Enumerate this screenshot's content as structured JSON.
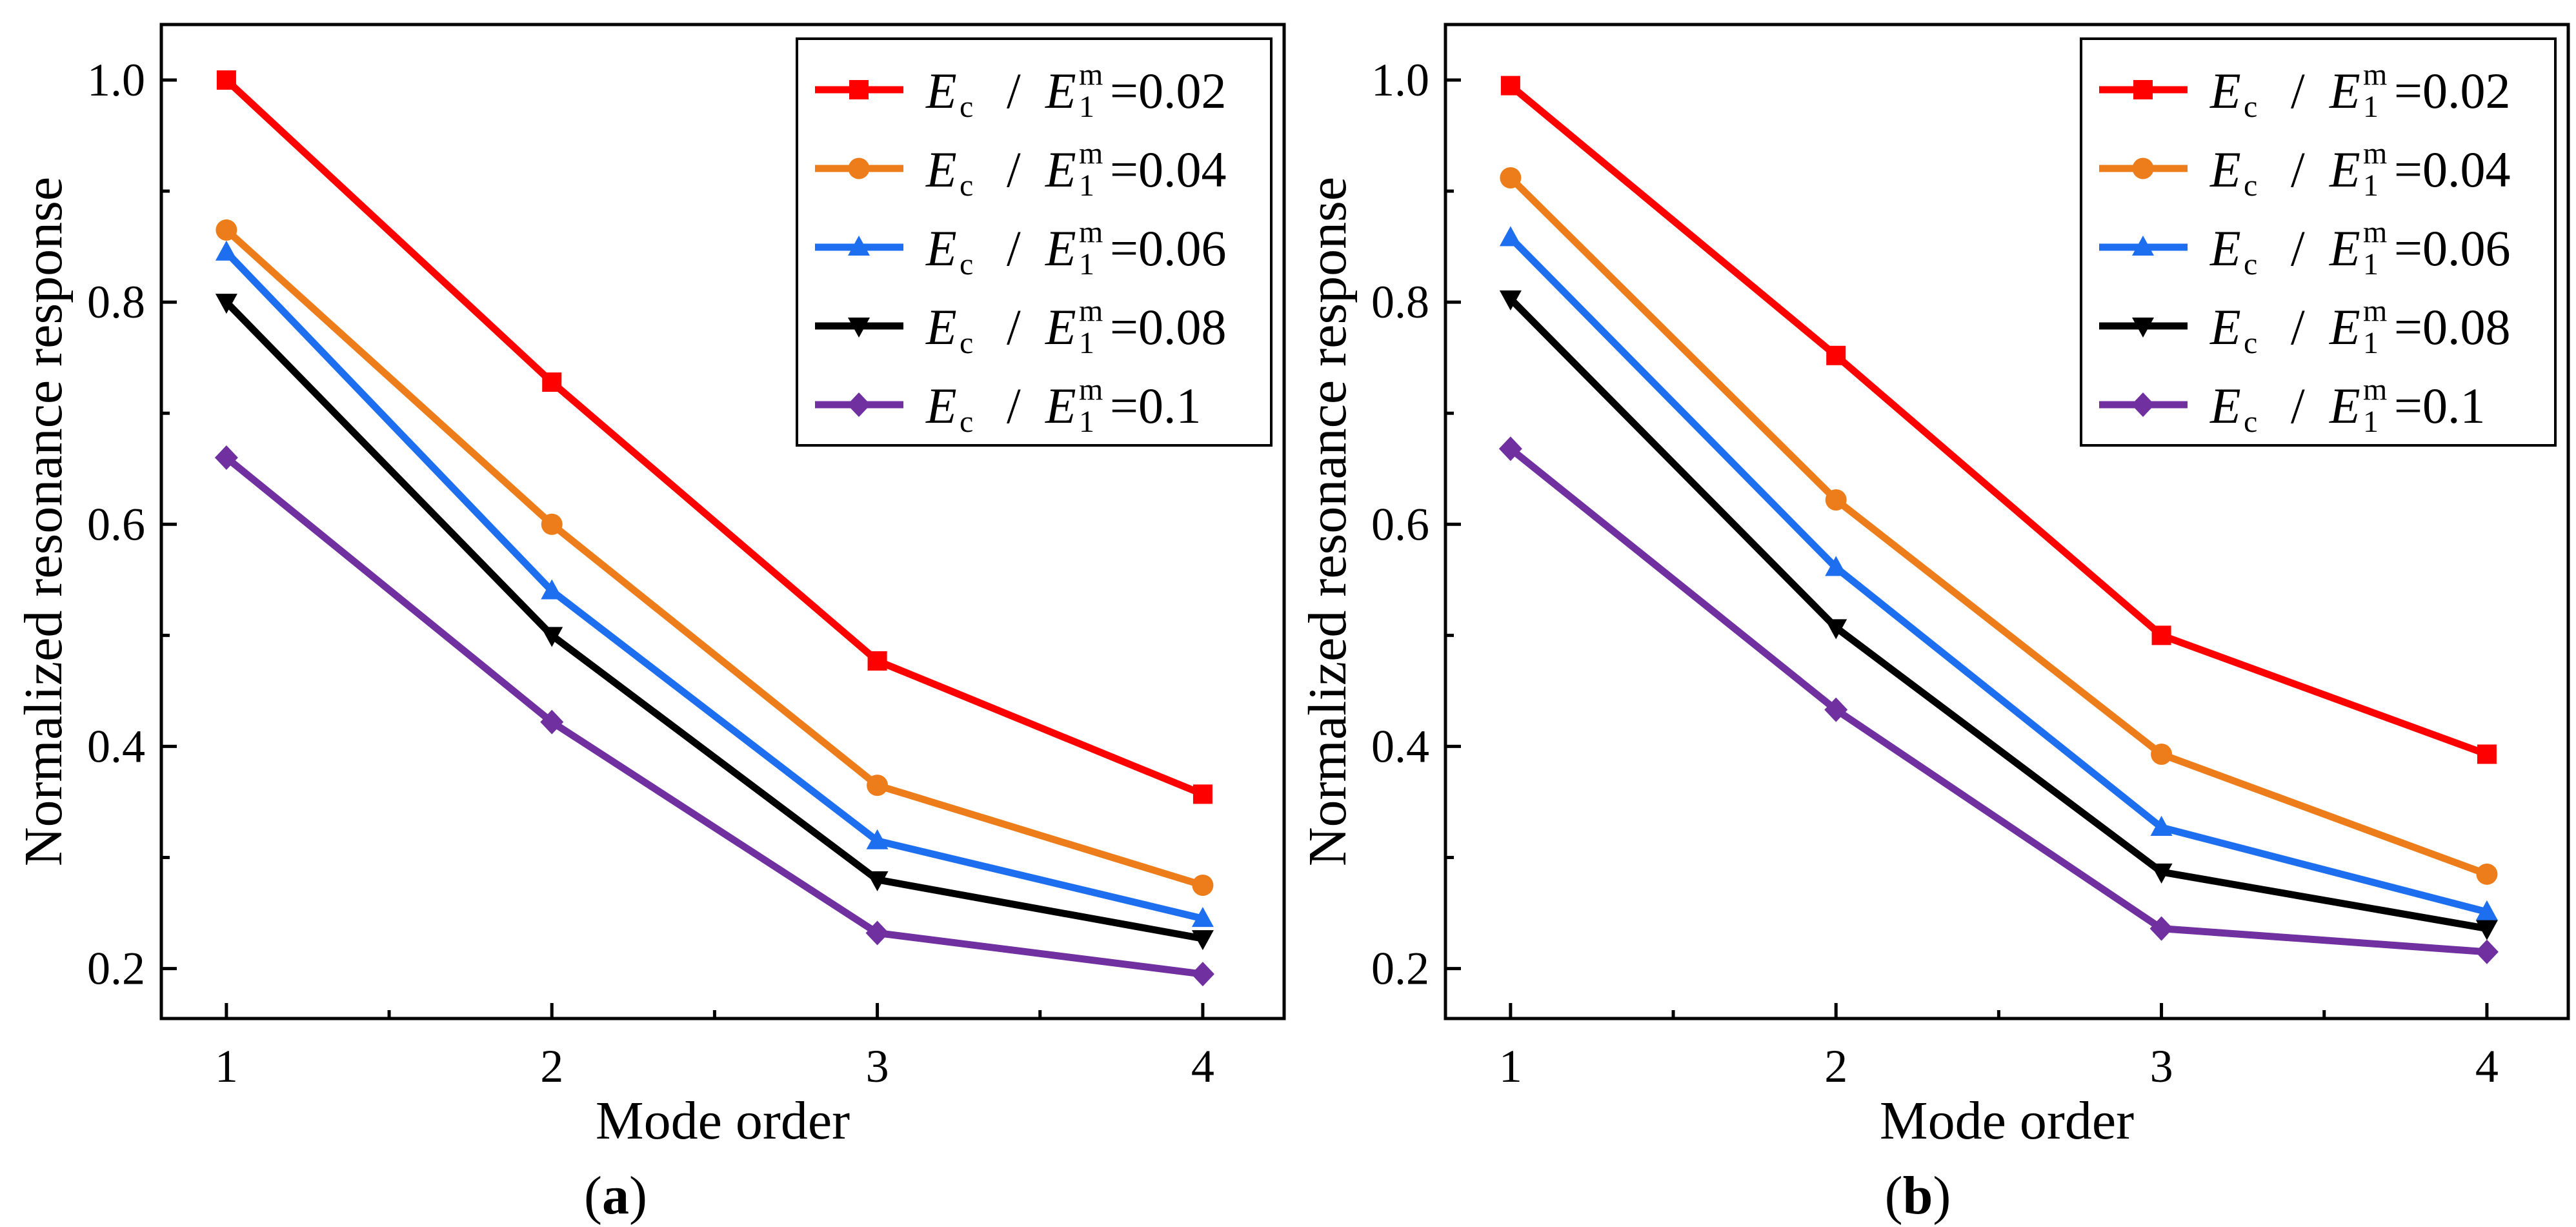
{
  "chart_data": [
    {
      "type": "line",
      "panel_label": "a",
      "title": "",
      "xlabel": "Mode order",
      "ylabel": "Normalized resonance response",
      "x": [
        1,
        2,
        3,
        4
      ],
      "xticks": [
        "1",
        "2",
        "3",
        "4"
      ],
      "yticks": [
        "0.2",
        "0.4",
        "0.6",
        "0.8",
        "1.0"
      ],
      "xlim": [
        0.8,
        4.25
      ],
      "ylim": [
        0.155,
        1.05
      ],
      "legend_position": "top-right",
      "legend_prefix": "E",
      "legend_prefix_sub": "c",
      "legend_divider": "/",
      "legend_denominator": "E",
      "legend_denominator_sub": "1",
      "legend_denominator_sup": "m",
      "series": [
        {
          "name": "=0.02",
          "color": "#ff0000",
          "marker": "square",
          "values": [
            1.0,
            0.728,
            0.477,
            0.357
          ]
        },
        {
          "name": "=0.04",
          "color": "#ed7d1a",
          "marker": "circle",
          "values": [
            0.865,
            0.6,
            0.365,
            0.275
          ]
        },
        {
          "name": "=0.06",
          "color": "#1e6ef0",
          "marker": "triangle-up",
          "values": [
            0.845,
            0.54,
            0.315,
            0.245
          ]
        },
        {
          "name": "=0.08",
          "color": "#000000",
          "marker": "triangle-down",
          "values": [
            0.8,
            0.5,
            0.28,
            0.227
          ]
        },
        {
          "name": "=0.1",
          "color": "#7030a0",
          "marker": "diamond",
          "values": [
            0.66,
            0.422,
            0.232,
            0.195
          ]
        }
      ]
    },
    {
      "type": "line",
      "panel_label": "b",
      "title": "",
      "xlabel": "Mode order",
      "ylabel": "Normalized resonance response",
      "x": [
        1,
        2,
        3,
        4
      ],
      "xticks": [
        "1",
        "2",
        "3",
        "4"
      ],
      "yticks": [
        "0.2",
        "0.4",
        "0.6",
        "0.8",
        "1.0"
      ],
      "xlim": [
        0.8,
        4.25
      ],
      "ylim": [
        0.155,
        1.05
      ],
      "legend_position": "top-right",
      "legend_prefix": "E",
      "legend_prefix_sub": "c",
      "legend_divider": "/",
      "legend_denominator": "E",
      "legend_denominator_sub": "1",
      "legend_denominator_sup": "m",
      "series": [
        {
          "name": "=0.02",
          "color": "#ff0000",
          "marker": "square",
          "values": [
            0.995,
            0.752,
            0.5,
            0.393
          ]
        },
        {
          "name": "=0.04",
          "color": "#ed7d1a",
          "marker": "circle",
          "values": [
            0.912,
            0.622,
            0.393,
            0.285
          ]
        },
        {
          "name": "=0.06",
          "color": "#1e6ef0",
          "marker": "triangle-up",
          "values": [
            0.858,
            0.561,
            0.327,
            0.251
          ]
        },
        {
          "name": "=0.08",
          "color": "#000000",
          "marker": "triangle-down",
          "values": [
            0.803,
            0.507,
            0.287,
            0.236
          ]
        },
        {
          "name": "=0.1",
          "color": "#7030a0",
          "marker": "diamond",
          "values": [
            0.668,
            0.433,
            0.236,
            0.215
          ]
        }
      ]
    }
  ]
}
